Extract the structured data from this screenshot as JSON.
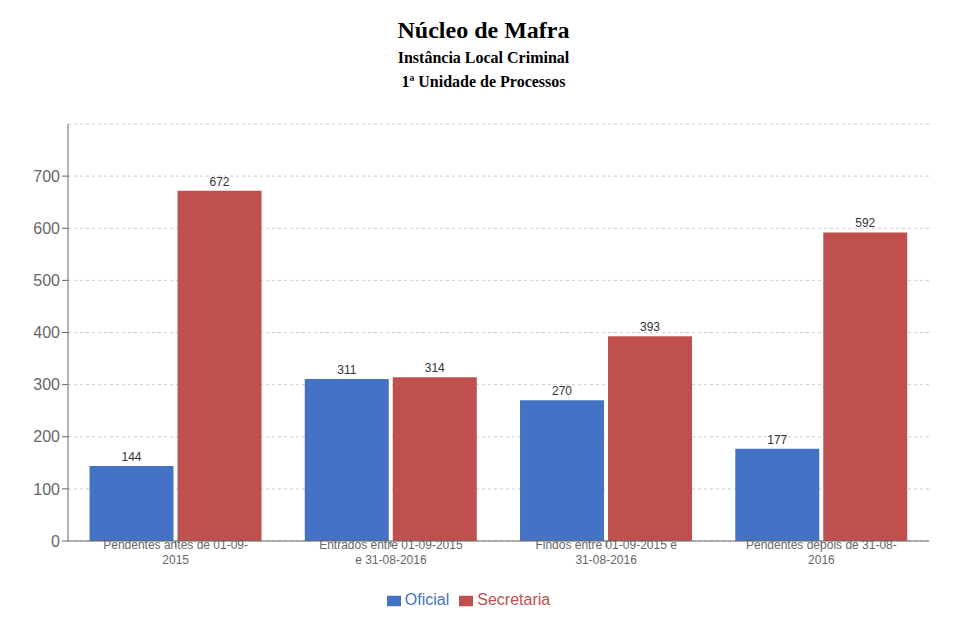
{
  "chart_data": {
    "type": "bar",
    "title": "Núcleo de Mafra",
    "subtitle": [
      "Instância Local Criminal",
      "1ª Unidade de Processos"
    ],
    "categories": [
      "Pendentes antes de 01-09-\n2015",
      "Entrados entre 01-09-2015\ne 31-08-2016",
      "Findos entre 01-09-2015 e\n31-08-2016",
      "Pendentes depois de 31-08-\n2016"
    ],
    "series": [
      {
        "name": "Oficial",
        "color": "#4472C4",
        "values": [
          144,
          311,
          270,
          177
        ]
      },
      {
        "name": "Secretaria",
        "color": "#C0504D",
        "values": [
          672,
          314,
          393,
          592
        ]
      }
    ],
    "ylim": [
      0,
      800
    ],
    "yticks": [
      0,
      100,
      200,
      300,
      400,
      500,
      600,
      700
    ],
    "grid": true,
    "legend": "bottom",
    "data_labels": true
  }
}
